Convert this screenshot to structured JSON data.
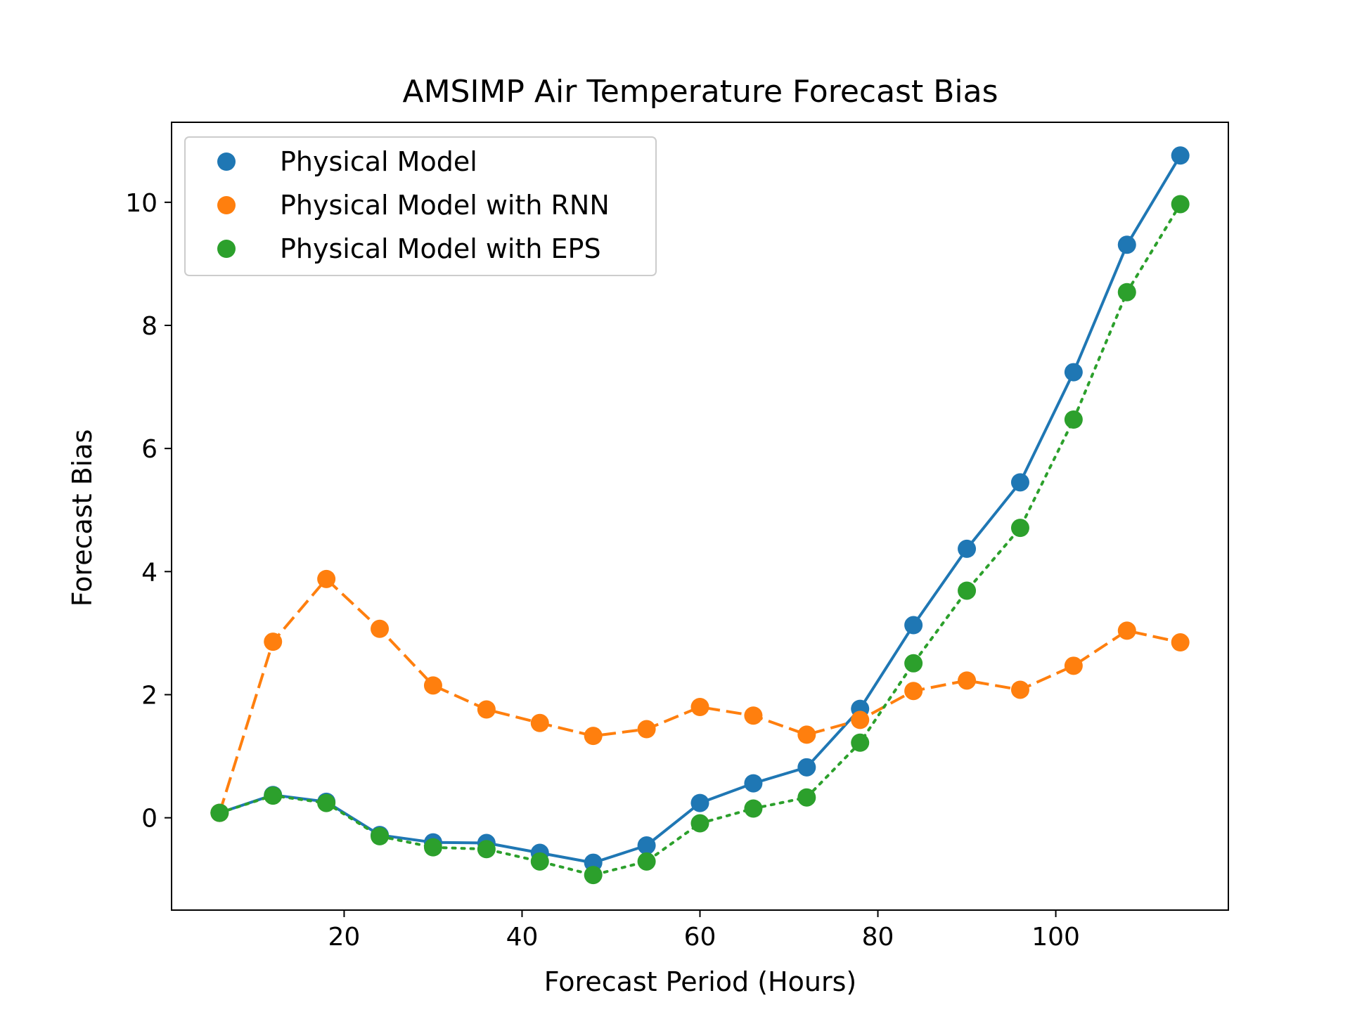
{
  "chart_data": {
    "type": "line",
    "title": "AMSIMP Air Temperature Forecast Bias",
    "xlabel": "Forecast Period (Hours)",
    "ylabel": "Forecast Bias",
    "xlim": [
      0.6,
      119.4
    ],
    "ylim": [
      -1.5,
      11.3
    ],
    "xticks": [
      20,
      40,
      60,
      80,
      100
    ],
    "yticks": [
      0,
      2,
      4,
      6,
      8,
      10
    ],
    "grid": false,
    "legend": "top-left",
    "x": [
      6,
      12,
      18,
      24,
      30,
      36,
      42,
      48,
      54,
      60,
      66,
      72,
      78,
      84,
      90,
      96,
      102,
      108,
      114
    ],
    "series": [
      {
        "name": "Physical Model",
        "color": "#1f77b4",
        "linestyle": "solid",
        "values": [
          0.08,
          0.37,
          0.26,
          -0.28,
          -0.4,
          -0.41,
          -0.57,
          -0.73,
          -0.45,
          0.24,
          0.56,
          0.82,
          1.77,
          3.13,
          4.37,
          5.45,
          7.24,
          9.31,
          10.76
        ]
      },
      {
        "name": "Physical Model with RNN",
        "color": "#ff7f0e",
        "linestyle": "dashed",
        "values": [
          0.08,
          2.86,
          3.88,
          3.07,
          2.15,
          1.76,
          1.54,
          1.33,
          1.44,
          1.8,
          1.66,
          1.35,
          1.59,
          2.06,
          2.23,
          2.08,
          2.47,
          3.04,
          2.85
        ]
      },
      {
        "name": "Physical Model with EPS",
        "color": "#2ca02c",
        "linestyle": "dotted",
        "values": [
          0.08,
          0.36,
          0.24,
          -0.3,
          -0.48,
          -0.51,
          -0.71,
          -0.93,
          -0.71,
          -0.09,
          0.15,
          0.33,
          1.22,
          2.51,
          3.69,
          4.71,
          6.47,
          8.54,
          9.97
        ]
      }
    ]
  }
}
